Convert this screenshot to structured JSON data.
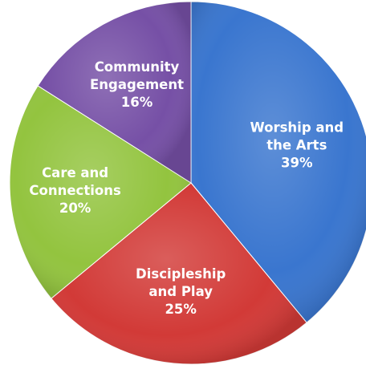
{
  "chart_data": {
    "type": "pie",
    "categories": [
      "Worship and the Arts",
      "Discipleship and Play",
      "Care and Connections",
      "Community Engagement"
    ],
    "values": [
      39,
      25,
      20,
      16
    ],
    "value_labels": [
      "39%",
      "25%",
      "20%",
      "16%"
    ],
    "label_lines": [
      [
        "Worship and",
        "the Arts"
      ],
      [
        "Discipleship",
        "and Play"
      ],
      [
        "Care and",
        "Connections"
      ],
      [
        "Community",
        "Engagement"
      ]
    ],
    "colors": [
      "#3a76cf",
      "#d23a37",
      "#93c43f",
      "#7650a6"
    ],
    "start_angle": "12 o'clock",
    "direction": "clockwise",
    "title": "",
    "legend": "none",
    "data_labels": "inside slices"
  }
}
